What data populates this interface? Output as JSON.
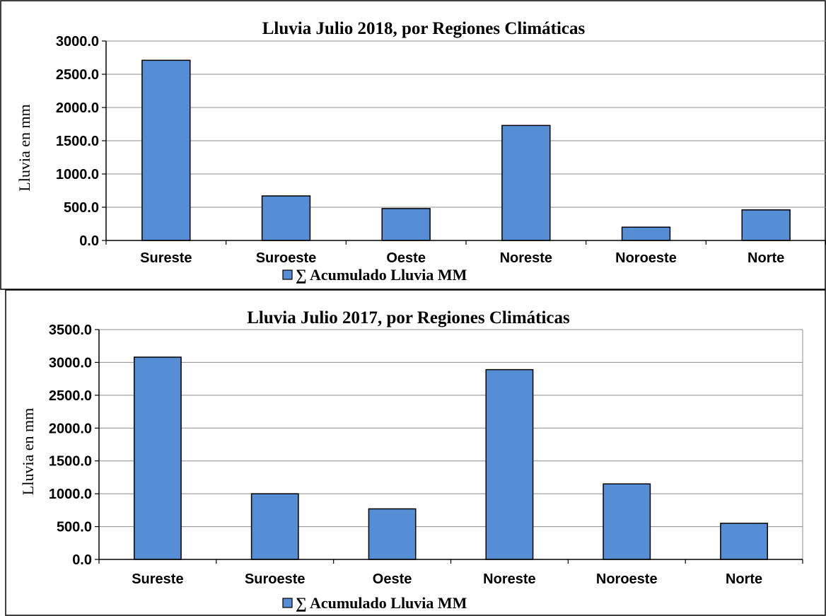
{
  "colors": {
    "bar": "#558ed5",
    "bar_stroke": "#000000",
    "grid": "#8c8c8c",
    "frame": "#000000"
  },
  "chart_data": [
    {
      "type": "bar",
      "title": "Lluvia Julio 2018, por Regiones Climáticas",
      "ylabel": "Lluvia en mm",
      "xlabel": "",
      "categories": [
        "Sureste",
        "Suroeste",
        "Oeste",
        "Noreste",
        "Noroeste",
        "Norte"
      ],
      "series": [
        {
          "name": "∑ Acumulado Lluvia  MM",
          "values": [
            2710,
            670,
            480,
            1730,
            200,
            460
          ]
        }
      ],
      "ylim": [
        0,
        3000
      ],
      "yticks": [
        "0.0",
        "500.0",
        "1000.0",
        "1500.0",
        "2000.0",
        "2500.0",
        "3000.0"
      ],
      "grid": true,
      "legend_position": "bottom"
    },
    {
      "type": "bar",
      "title": "Lluvia Julio 2017, por Regiones Climáticas",
      "ylabel": "Lluvia en mm",
      "xlabel": "",
      "categories": [
        "Sureste",
        "Suroeste",
        "Oeste",
        "Noreste",
        "Noroeste",
        "Norte"
      ],
      "series": [
        {
          "name": "∑ Acumulado Lluvia  MM",
          "values": [
            3080,
            1000,
            770,
            2890,
            1150,
            550
          ]
        }
      ],
      "ylim": [
        0,
        3500
      ],
      "yticks": [
        "0.0",
        "500.0",
        "1000.0",
        "1500.0",
        "2000.0",
        "2500.0",
        "3000.0",
        "3500.0"
      ],
      "grid": true,
      "legend_position": "bottom"
    }
  ]
}
